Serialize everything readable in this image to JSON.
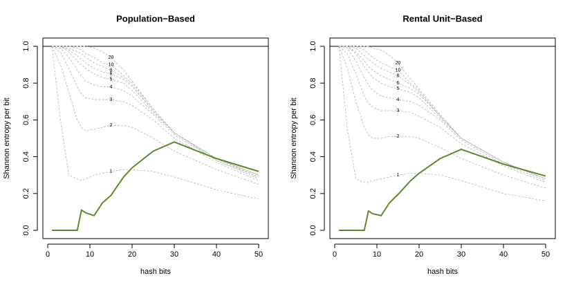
{
  "chart_data": [
    {
      "type": "line",
      "title": "Population−Based",
      "x_label": "hash bits",
      "y_label": "Shannon entropy per bit",
      "x": [
        1,
        3,
        5,
        7,
        8,
        9,
        11,
        13,
        15,
        18,
        20,
        25,
        30,
        40,
        50
      ],
      "xlim": [
        -1.15,
        52.3
      ],
      "ylim": [
        -0.045,
        1.045
      ],
      "xticks": [
        0,
        10,
        20,
        30,
        40,
        50
      ],
      "yticks": [
        {
          "value": 0,
          "label": "0.0"
        },
        {
          "value": 0.2,
          "label": "0.2"
        },
        {
          "value": 0.4,
          "label": "0.4"
        },
        {
          "value": 0.6,
          "label": "0.6"
        },
        {
          "value": 0.8,
          "label": "0.8"
        },
        {
          "value": 1,
          "label": "1.0"
        }
      ],
      "reference_line": 1,
      "series": [
        {
          "name": "1",
          "color": "#bbbbbb",
          "dashed": true,
          "values": [
            1.0,
            0.6,
            0.3,
            0.28,
            0.27,
            0.28,
            0.3,
            0.31,
            0.32,
            0.33,
            0.33,
            0.32,
            0.29,
            0.22,
            0.17
          ]
        },
        {
          "name": "2",
          "color": "#bbbbbb",
          "dashed": true,
          "values": [
            1.0,
            0.9,
            0.75,
            0.6,
            0.56,
            0.54,
            0.55,
            0.56,
            0.57,
            0.57,
            0.56,
            0.5,
            0.43,
            0.33,
            0.25
          ]
        },
        {
          "name": "3",
          "color": "#bbbbbb",
          "dashed": true,
          "values": [
            1.0,
            0.97,
            0.88,
            0.78,
            0.74,
            0.72,
            0.71,
            0.71,
            0.71,
            0.7,
            0.68,
            0.6,
            0.5,
            0.37,
            0.27
          ]
        },
        {
          "name": "4",
          "color": "#bbbbbb",
          "dashed": true,
          "values": [
            1.0,
            0.99,
            0.94,
            0.87,
            0.84,
            0.81,
            0.79,
            0.78,
            0.78,
            0.76,
            0.73,
            0.63,
            0.52,
            0.38,
            0.28
          ]
        },
        {
          "name": "5",
          "color": "#bbbbbb",
          "dashed": true,
          "values": [
            1.0,
            1.0,
            0.97,
            0.92,
            0.9,
            0.88,
            0.85,
            0.83,
            0.82,
            0.8,
            0.76,
            0.64,
            0.53,
            0.38,
            0.29
          ]
        },
        {
          "name": "6",
          "color": "#bbbbbb",
          "dashed": true,
          "values": [
            1.0,
            1.0,
            0.98,
            0.95,
            0.93,
            0.91,
            0.88,
            0.86,
            0.85,
            0.82,
            0.78,
            0.65,
            0.53,
            0.39,
            0.29
          ]
        },
        {
          "name": "8",
          "color": "#bbbbbb",
          "dashed": true,
          "values": [
            1.0,
            1.0,
            0.99,
            0.97,
            0.96,
            0.94,
            0.91,
            0.89,
            0.87,
            0.83,
            0.79,
            0.65,
            0.53,
            0.39,
            0.3
          ]
        },
        {
          "name": "10",
          "color": "#bbbbbb",
          "dashed": true,
          "values": [
            1.0,
            1.0,
            1.0,
            0.99,
            0.98,
            0.96,
            0.94,
            0.91,
            0.9,
            0.84,
            0.8,
            0.66,
            0.53,
            0.39,
            0.3
          ]
        },
        {
          "name": "20",
          "color": "#bbbbbb",
          "dashed": true,
          "values": [
            1.0,
            1.0,
            1.0,
            1.0,
            1.0,
            1.0,
            0.99,
            0.97,
            0.94,
            0.87,
            0.81,
            0.66,
            0.53,
            0.39,
            0.3
          ]
        },
        {
          "color": "#5b8a2a",
          "dashed": false,
          "values": [
            0,
            0,
            0,
            0,
            0.11,
            0.095,
            0.08,
            0.15,
            0.19,
            0.29,
            0.34,
            0.43,
            0.48,
            0.39,
            0.32
          ]
        }
      ]
    },
    {
      "type": "line",
      "title": "Rental Unit−Based",
      "x_label": "hash bits",
      "y_label": "Shannon entropy per bit",
      "x": [
        1,
        3,
        5,
        7,
        8,
        9,
        11,
        13,
        15,
        18,
        20,
        25,
        30,
        40,
        50
      ],
      "xlim": [
        -1.15,
        52.3
      ],
      "ylim": [
        -0.045,
        1.045
      ],
      "xticks": [
        0,
        10,
        20,
        30,
        40,
        50
      ],
      "yticks": [
        {
          "value": 0,
          "label": "0.0"
        },
        {
          "value": 0.2,
          "label": "0.2"
        },
        {
          "value": 0.4,
          "label": "0.4"
        },
        {
          "value": 0.6,
          "label": "0.6"
        },
        {
          "value": 0.8,
          "label": "0.8"
        },
        {
          "value": 1,
          "label": "1.0"
        }
      ],
      "reference_line": 1,
      "series": [
        {
          "name": "1",
          "color": "#bbbbbb",
          "dashed": true,
          "values": [
            1.0,
            0.55,
            0.28,
            0.26,
            0.26,
            0.27,
            0.28,
            0.29,
            0.3,
            0.31,
            0.31,
            0.3,
            0.27,
            0.2,
            0.16
          ]
        },
        {
          "name": "2",
          "color": "#bbbbbb",
          "dashed": true,
          "values": [
            1.0,
            0.88,
            0.7,
            0.56,
            0.52,
            0.5,
            0.5,
            0.51,
            0.51,
            0.51,
            0.5,
            0.45,
            0.39,
            0.3,
            0.23
          ]
        },
        {
          "name": "3",
          "color": "#bbbbbb",
          "dashed": true,
          "values": [
            1.0,
            0.96,
            0.85,
            0.73,
            0.69,
            0.67,
            0.65,
            0.65,
            0.65,
            0.64,
            0.62,
            0.56,
            0.47,
            0.35,
            0.26
          ]
        },
        {
          "name": "4",
          "color": "#bbbbbb",
          "dashed": true,
          "values": [
            1.0,
            0.99,
            0.92,
            0.83,
            0.79,
            0.76,
            0.73,
            0.72,
            0.71,
            0.7,
            0.68,
            0.6,
            0.49,
            0.36,
            0.27
          ]
        },
        {
          "name": "5",
          "color": "#bbbbbb",
          "dashed": true,
          "values": [
            1.0,
            1.0,
            0.96,
            0.89,
            0.86,
            0.83,
            0.8,
            0.78,
            0.77,
            0.75,
            0.72,
            0.61,
            0.5,
            0.37,
            0.28
          ]
        },
        {
          "name": "6",
          "color": "#bbbbbb",
          "dashed": true,
          "values": [
            1.0,
            1.0,
            0.97,
            0.92,
            0.89,
            0.87,
            0.84,
            0.82,
            0.8,
            0.77,
            0.74,
            0.62,
            0.5,
            0.37,
            0.28
          ]
        },
        {
          "name": "8",
          "color": "#bbbbbb",
          "dashed": true,
          "values": [
            1.0,
            1.0,
            0.99,
            0.95,
            0.93,
            0.91,
            0.88,
            0.86,
            0.84,
            0.79,
            0.75,
            0.62,
            0.5,
            0.37,
            0.28
          ]
        },
        {
          "name": "10",
          "color": "#bbbbbb",
          "dashed": true,
          "values": [
            1.0,
            1.0,
            1.0,
            0.98,
            0.96,
            0.94,
            0.91,
            0.89,
            0.87,
            0.8,
            0.76,
            0.62,
            0.5,
            0.37,
            0.28
          ]
        },
        {
          "name": "20",
          "color": "#bbbbbb",
          "dashed": true,
          "values": [
            1.0,
            1.0,
            1.0,
            1.0,
            1.0,
            0.99,
            0.98,
            0.95,
            0.91,
            0.82,
            0.77,
            0.63,
            0.5,
            0.37,
            0.28
          ]
        },
        {
          "color": "#5b8a2a",
          "dashed": false,
          "values": [
            0,
            0,
            0,
            0,
            0.105,
            0.09,
            0.08,
            0.15,
            0.195,
            0.27,
            0.31,
            0.39,
            0.44,
            0.36,
            0.295
          ]
        }
      ]
    }
  ]
}
